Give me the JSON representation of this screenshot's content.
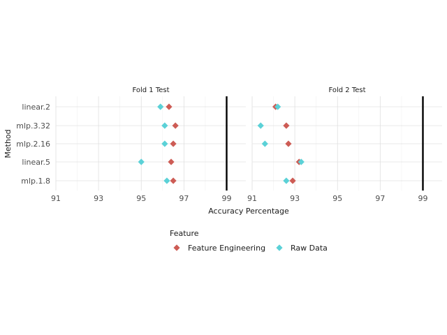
{
  "chart_data": {
    "type": "scatter",
    "xlabel": "Accuracy Percentage",
    "ylabel": "Method",
    "xlim": [
      91,
      99.9
    ],
    "xticks": [
      91,
      93,
      95,
      97,
      99
    ],
    "reference_line_x": 99,
    "categories": [
      "linear.2",
      "mlp.3.32",
      "mlp.2.16",
      "linear.5",
      "mlp.1.8"
    ],
    "legend": {
      "title": "Feature",
      "position": "bottom",
      "entries": [
        "Feature Engineering",
        "Raw Data"
      ]
    },
    "colors": {
      "Feature Engineering": "#cd5c55",
      "Raw Data": "#5bd1d7"
    },
    "panels": [
      {
        "title": "Fold 1 Test",
        "series": [
          {
            "name": "Feature Engineering",
            "values": [
              96.3,
              96.6,
              96.5,
              96.4,
              96.5
            ]
          },
          {
            "name": "Raw Data",
            "values": [
              95.9,
              96.1,
              96.1,
              95.0,
              96.2
            ]
          }
        ]
      },
      {
        "title": "Fold 2 Test",
        "series": [
          {
            "name": "Feature Engineering",
            "values": [
              92.1,
              92.6,
              92.7,
              93.2,
              92.9
            ]
          },
          {
            "name": "Raw Data",
            "values": [
              92.2,
              91.4,
              91.6,
              93.3,
              92.6
            ]
          }
        ]
      }
    ]
  }
}
